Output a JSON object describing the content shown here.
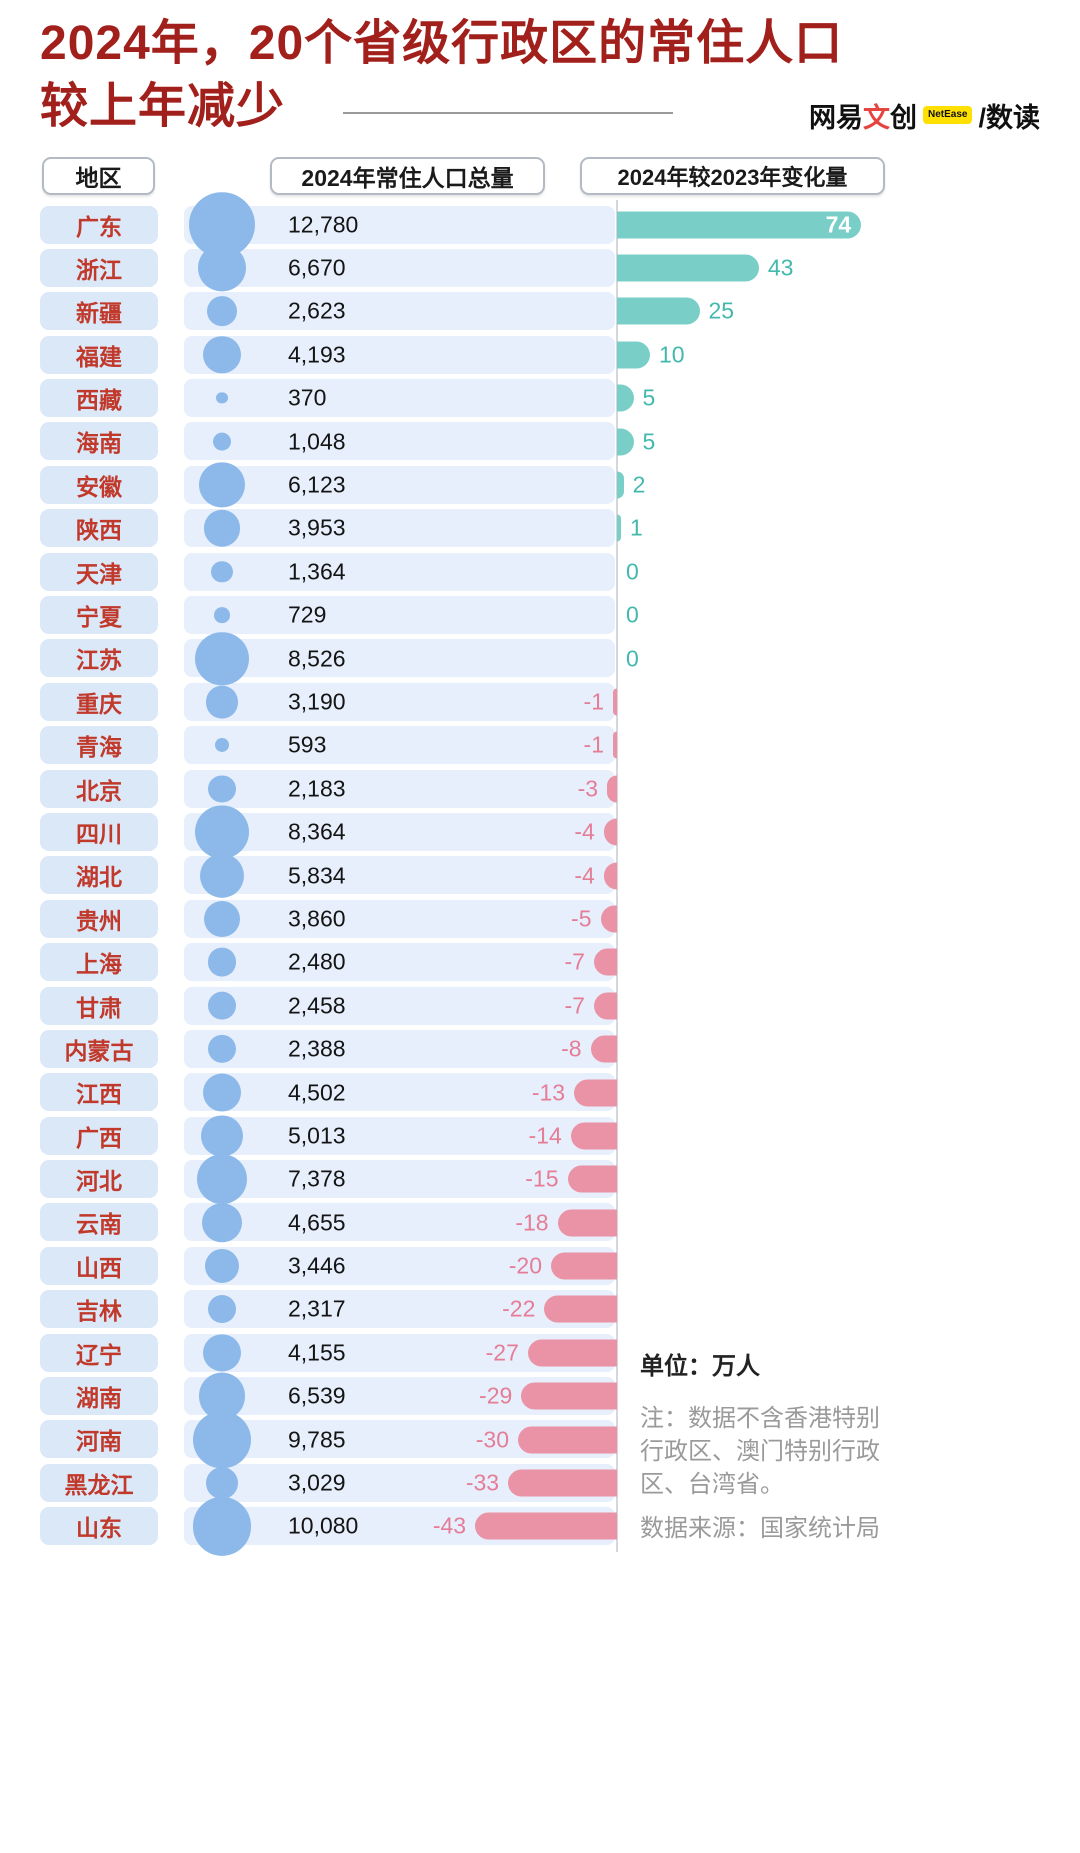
{
  "title": {
    "line1": "2024年，20个省级行政区的常住人口",
    "line2": "较上年减少"
  },
  "brand": {
    "name_part1": "网易",
    "name_part2": "文",
    "name_part3": "创",
    "badge": "NetEase",
    "slash": "/",
    "product": "数读"
  },
  "headers": {
    "region": "地区",
    "population": "2024年常住人口总量",
    "change": "2024年较2023年变化量"
  },
  "notes": {
    "unit": "单位：万人",
    "note_lines": [
      "注：数据不含香港特别",
      "行政区、澳门特别行政",
      "区、台湾省。"
    ],
    "source": "数据来源：国家统计局"
  },
  "colors": {
    "title_red": "#a2201b",
    "province_red": "#c0392b",
    "cell_blue": "#dbe8f8",
    "band_blue": "#e6effb",
    "bubble_blue": "#8cb9ea",
    "positive_bar": "#79cfc7",
    "positive_text": "#43b9ae",
    "negative_bar": "#ea92a6",
    "negative_text": "#e57d96",
    "brand_red": "#e5443f",
    "brand_yellow": "#ffe000"
  },
  "chart_data": {
    "type": "bar",
    "title": "2024年，20个省级行政区的常住人口较上年减少",
    "unit": "万人",
    "columns": [
      "地区",
      "2024年常住人口总量",
      "2024年较2023年变化量"
    ],
    "change_axis_range": [
      -43,
      74
    ],
    "rows": [
      {
        "region": "广东",
        "population": 12780,
        "population_label": "12,780",
        "change": 74
      },
      {
        "region": "浙江",
        "population": 6670,
        "population_label": "6,670",
        "change": 43
      },
      {
        "region": "新疆",
        "population": 2623,
        "population_label": "2,623",
        "change": 25
      },
      {
        "region": "福建",
        "population": 4193,
        "population_label": "4,193",
        "change": 10
      },
      {
        "region": "西藏",
        "population": 370,
        "population_label": "370",
        "change": 5
      },
      {
        "region": "海南",
        "population": 1048,
        "population_label": "1,048",
        "change": 5
      },
      {
        "region": "安徽",
        "population": 6123,
        "population_label": "6,123",
        "change": 2
      },
      {
        "region": "陕西",
        "population": 3953,
        "population_label": "3,953",
        "change": 1
      },
      {
        "region": "天津",
        "population": 1364,
        "population_label": "1,364",
        "change": 0
      },
      {
        "region": "宁夏",
        "population": 729,
        "population_label": "729",
        "change": 0
      },
      {
        "region": "江苏",
        "population": 8526,
        "population_label": "8,526",
        "change": 0
      },
      {
        "region": "重庆",
        "population": 3190,
        "population_label": "3,190",
        "change": -1
      },
      {
        "region": "青海",
        "population": 593,
        "population_label": "593",
        "change": -1
      },
      {
        "region": "北京",
        "population": 2183,
        "population_label": "2,183",
        "change": -3
      },
      {
        "region": "四川",
        "population": 8364,
        "population_label": "8,364",
        "change": -4
      },
      {
        "region": "湖北",
        "population": 5834,
        "population_label": "5,834",
        "change": -4
      },
      {
        "region": "贵州",
        "population": 3860,
        "population_label": "3,860",
        "change": -5
      },
      {
        "region": "上海",
        "population": 2480,
        "population_label": "2,480",
        "change": -7
      },
      {
        "region": "甘肃",
        "population": 2458,
        "population_label": "2,458",
        "change": -7
      },
      {
        "region": "内蒙古",
        "population": 2388,
        "population_label": "2,388",
        "change": -8
      },
      {
        "region": "江西",
        "population": 4502,
        "population_label": "4,502",
        "change": -13
      },
      {
        "region": "广西",
        "population": 5013,
        "population_label": "5,013",
        "change": -14
      },
      {
        "region": "河北",
        "population": 7378,
        "population_label": "7,378",
        "change": -15
      },
      {
        "region": "云南",
        "population": 4655,
        "population_label": "4,655",
        "change": -18
      },
      {
        "region": "山西",
        "population": 3446,
        "population_label": "3,446",
        "change": -20
      },
      {
        "region": "吉林",
        "population": 2317,
        "population_label": "2,317",
        "change": -22
      },
      {
        "region": "辽宁",
        "population": 4155,
        "population_label": "4,155",
        "change": -27
      },
      {
        "region": "湖南",
        "population": 6539,
        "population_label": "6,539",
        "change": -29
      },
      {
        "region": "河南",
        "population": 9785,
        "population_label": "9,785",
        "change": -30
      },
      {
        "region": "黑龙江",
        "population": 3029,
        "population_label": "3,029",
        "change": -33
      },
      {
        "region": "山东",
        "population": 10080,
        "population_label": "10,080",
        "change": -43
      }
    ]
  }
}
